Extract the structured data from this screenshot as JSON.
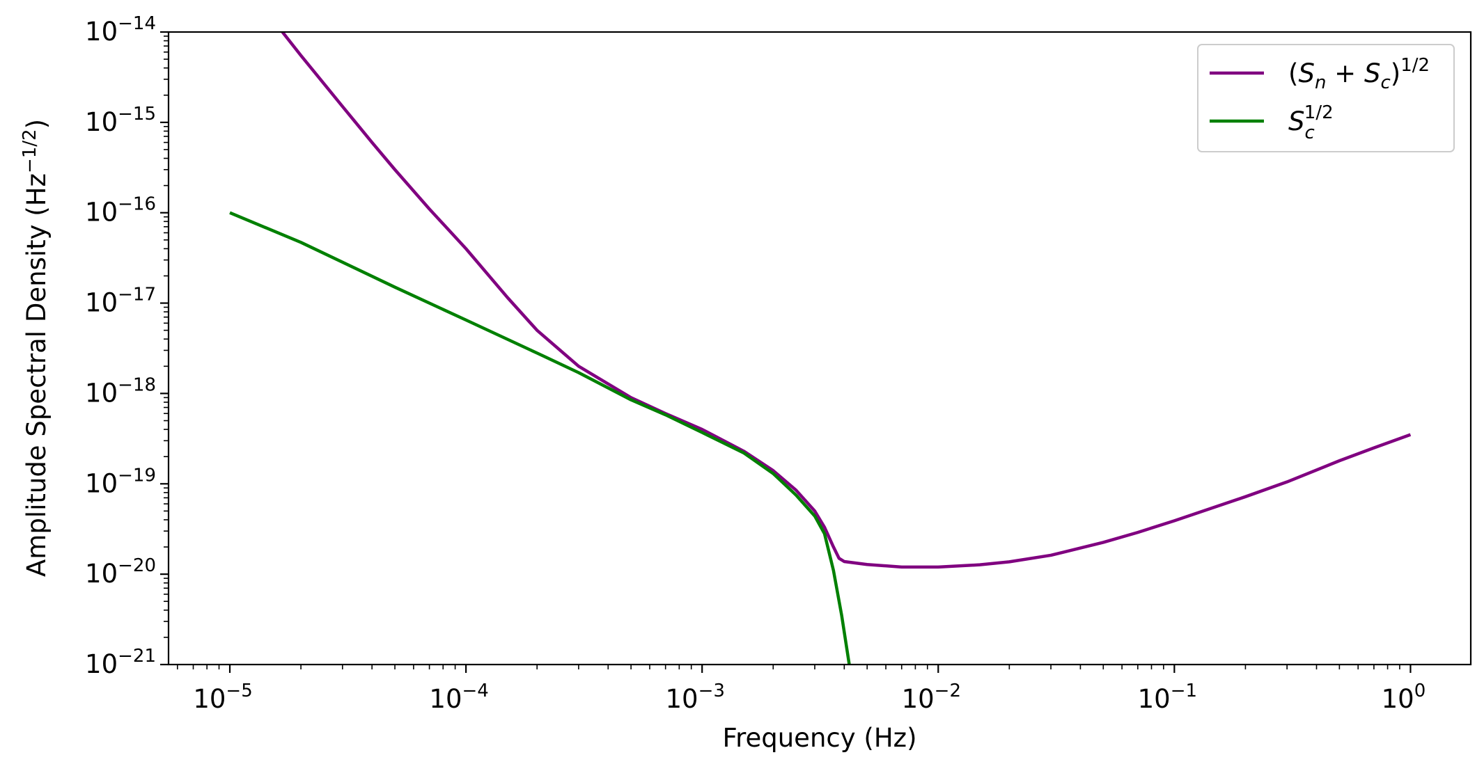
{
  "chart_data": {
    "type": "line",
    "title": "",
    "xlabel": "Frequency (Hz)",
    "ylabel": "Amplitude Spectral Density (Hz",
    "ylabel_exponent": "−1/2",
    "ylabel_suffix": ")",
    "x_scale": "log",
    "y_scale": "log",
    "xlim": [
      5.5e-06,
      1.8
    ],
    "ylim": [
      1e-21,
      1e-14
    ],
    "grid": false,
    "legend_position": "top-right",
    "x_ticks": [
      {
        "value": 1e-05,
        "base": "10",
        "exp": "−5"
      },
      {
        "value": 0.0001,
        "base": "10",
        "exp": "−4"
      },
      {
        "value": 0.001,
        "base": "10",
        "exp": "−3"
      },
      {
        "value": 0.01,
        "base": "10",
        "exp": "−2"
      },
      {
        "value": 0.1,
        "base": "10",
        "exp": "−1"
      },
      {
        "value": 1,
        "base": "10",
        "exp": "0"
      }
    ],
    "y_ticks": [
      {
        "value": 1e-21,
        "base": "10",
        "exp": "−21"
      },
      {
        "value": 1e-20,
        "base": "10",
        "exp": "−20"
      },
      {
        "value": 1e-19,
        "base": "10",
        "exp": "−19"
      },
      {
        "value": 1e-18,
        "base": "10",
        "exp": "−18"
      },
      {
        "value": 1e-17,
        "base": "10",
        "exp": "−17"
      },
      {
        "value": 1e-16,
        "base": "10",
        "exp": "−16"
      },
      {
        "value": 1e-15,
        "base": "10",
        "exp": "−15"
      },
      {
        "value": 1e-14,
        "base": "10",
        "exp": "−14"
      }
    ],
    "series": [
      {
        "name": "(Sn + Sc)1/2",
        "legend": {
          "open": "(",
          "s1": "S",
          "sub1": "n",
          "plus": " + ",
          "s2": "S",
          "sub2": "c",
          "close": ")",
          "sup": "1/2"
        },
        "color": "#800080",
        "x": [
          1.67e-05,
          2e-05,
          3e-05,
          4e-05,
          5e-05,
          7e-05,
          0.0001,
          0.00015,
          0.0002,
          0.0003,
          0.0005,
          0.0007,
          0.001,
          0.0015,
          0.002,
          0.0025,
          0.003,
          0.0033,
          0.0036,
          0.0038,
          0.004,
          0.005,
          0.007,
          0.01,
          0.015,
          0.02,
          0.03,
          0.05,
          0.07,
          0.1,
          0.2,
          0.3,
          0.5,
          0.7,
          1
        ],
        "y": [
          1e-14,
          5.5e-15,
          1.5e-15,
          6e-16,
          3e-16,
          1.1e-16,
          4e-17,
          1.15e-17,
          5e-18,
          2e-18,
          9e-19,
          6e-19,
          4e-19,
          2.3e-19,
          1.4e-19,
          8.5e-20,
          5e-20,
          3.3e-20,
          2e-20,
          1.5e-20,
          1.38e-20,
          1.28e-20,
          1.2e-20,
          1.2e-20,
          1.27e-20,
          1.37e-20,
          1.62e-20,
          2.25e-20,
          2.9e-20,
          3.9e-20,
          7.2e-20,
          1.05e-19,
          1.8e-19,
          2.5e-19,
          3.5e-19
        ]
      },
      {
        "name": "Sc1/2",
        "legend": {
          "s1": "S",
          "sub1": "c",
          "sup": "1/2"
        },
        "color": "#008000",
        "x": [
          1e-05,
          2e-05,
          5e-05,
          0.0001,
          0.0002,
          0.0003,
          0.0005,
          0.0007,
          0.001,
          0.0015,
          0.002,
          0.0025,
          0.003,
          0.0033,
          0.0036,
          0.0039,
          0.0042
        ],
        "y": [
          1e-16,
          4.7e-17,
          1.5e-17,
          6.5e-18,
          2.8e-18,
          1.7e-18,
          8.5e-19,
          5.8e-19,
          3.7e-19,
          2.2e-19,
          1.3e-19,
          7.5e-20,
          4.4e-20,
          2.8e-20,
          1.1e-20,
          3.5e-21,
          1e-21
        ]
      }
    ]
  }
}
